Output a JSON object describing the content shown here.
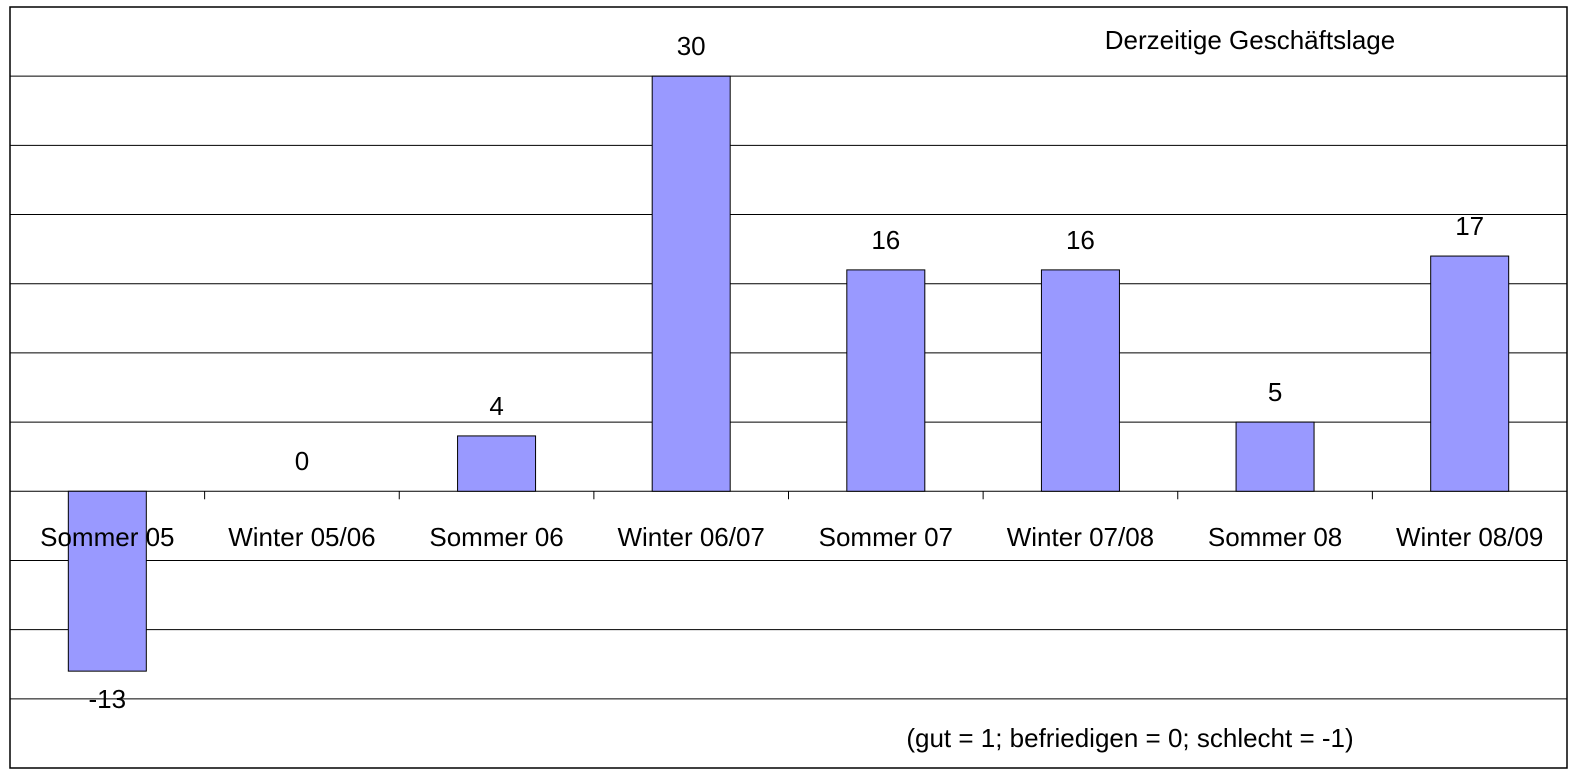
{
  "chart_data": {
    "type": "bar",
    "title": "Derzeitige Geschäftslage",
    "annotation": "(gut = 1; befriedigen = 0; schlecht = -1)",
    "categories": [
      "Sommer 05",
      "Winter 05/06",
      "Sommer 06",
      "Winter 06/07",
      "Sommer 07",
      "Winter 07/08",
      "Sommer 08",
      "Winter 08/09"
    ],
    "values": [
      -13,
      0,
      4,
      30,
      16,
      16,
      5,
      17
    ],
    "color": "#9999ff",
    "ylim": [
      -20,
      35
    ],
    "yticks": [
      -15,
      -10,
      -5,
      0,
      5,
      10,
      15,
      20,
      25,
      30
    ],
    "grid": true
  }
}
